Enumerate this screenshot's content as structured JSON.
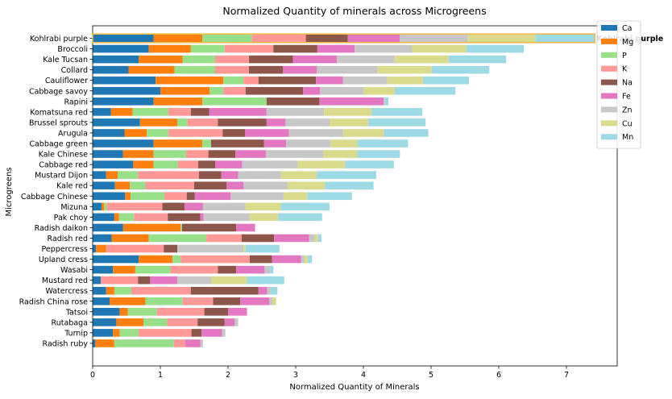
{
  "chart_data": {
    "type": "bar",
    "orientation": "horizontal",
    "stacked": true,
    "title": "Normalized Quantity of minerals across Microgreens",
    "xlabel": "Normalized Quantity of Minerals",
    "ylabel": "Microgreens",
    "xlim": [
      0,
      7.75
    ],
    "xticks": [
      0,
      1,
      2,
      3,
      4,
      5,
      6,
      7
    ],
    "grid": false,
    "legend_position": "top-right",
    "highlight": {
      "category": "Kohlrabi purple",
      "label": "Kohlrabi purple",
      "color": "#f0b84a"
    },
    "categories": [
      "Kohlrabi purple",
      "Broccoli",
      "Kale Tucsan",
      "Collard",
      "Cauliflower",
      "Cabbage savoy",
      "Rapini",
      "Komatsuna red",
      "Brussel sprouts",
      "Arugula",
      "Cabbage green",
      "Kale Chinese",
      "Cabbage red",
      "Mustard Dijon",
      "Kale red",
      "Cabbage Chinese",
      "Mizuna",
      "Pak choy",
      "Radish daikon",
      "Radish red",
      "Peppercress",
      "Upland cress",
      "Wasabi",
      "Mustard red",
      "Watercress",
      "Radish China rose",
      "Tatsoi",
      "Rutabaga",
      "Turnip",
      "Radish ruby"
    ],
    "series": [
      {
        "name": "Ca",
        "color": "#1f77b4",
        "values": [
          0.9,
          0.83,
          0.68,
          0.53,
          0.93,
          1.0,
          0.9,
          0.27,
          0.7,
          0.47,
          0.9,
          0.45,
          0.6,
          0.2,
          0.33,
          0.48,
          0.13,
          0.32,
          0.45,
          0.28,
          0.05,
          0.68,
          0.3,
          0.12,
          0.2,
          0.25,
          0.4,
          0.35,
          0.3,
          0.04
        ]
      },
      {
        "name": "Mg",
        "color": "#ff7f0e",
        "values": [
          0.72,
          0.62,
          0.65,
          0.68,
          1.0,
          0.73,
          0.72,
          0.32,
          0.55,
          0.33,
          0.72,
          0.45,
          0.3,
          0.17,
          0.22,
          0.08,
          0.04,
          0.07,
          0.85,
          0.55,
          0.15,
          0.5,
          0.33,
          0.0,
          0.12,
          0.53,
          0.12,
          0.4,
          0.1,
          0.28
        ]
      },
      {
        "name": "P",
        "color": "#98df8a",
        "values": [
          0.73,
          0.5,
          0.48,
          0.6,
          0.3,
          0.2,
          0.95,
          0.53,
          0.15,
          0.32,
          0.13,
          0.48,
          0.36,
          0.3,
          0.23,
          0.5,
          0.04,
          0.22,
          0.02,
          0.85,
          0.0,
          0.12,
          0.52,
          0.0,
          0.25,
          0.55,
          0.43,
          0.35,
          0.28,
          0.88
        ]
      },
      {
        "name": "K",
        "color": "#ff9896",
        "values": [
          0.8,
          0.72,
          0.5,
          0.5,
          0.22,
          0.33,
          0.0,
          0.33,
          0.45,
          0.8,
          0.0,
          0.33,
          0.3,
          0.9,
          0.72,
          0.33,
          0.82,
          0.5,
          0.0,
          0.52,
          0.85,
          1.02,
          0.7,
          0.55,
          0.88,
          0.45,
          0.7,
          0.45,
          0.78,
          0.17
        ]
      },
      {
        "name": "Na",
        "color": "#8c564b",
        "values": [
          0.62,
          0.65,
          0.65,
          0.5,
          0.85,
          0.85,
          0.78,
          0.27,
          0.72,
          0.33,
          0.78,
          0.4,
          0.25,
          0.33,
          0.48,
          0.12,
          0.33,
          0.48,
          0.8,
          0.48,
          0.2,
          0.33,
          0.27,
          0.18,
          1.0,
          0.4,
          0.35,
          0.4,
          0.15,
          0.0
        ]
      },
      {
        "name": "Fe",
        "color": "#e377c2",
        "values": [
          0.77,
          0.55,
          0.65,
          0.5,
          0.4,
          0.25,
          0.95,
          0.85,
          0.28,
          0.65,
          0.33,
          0.45,
          0.4,
          0.25,
          0.25,
          0.53,
          0.27,
          0.05,
          0.28,
          0.52,
          0.0,
          0.43,
          0.42,
          0.4,
          0.13,
          0.43,
          0.28,
          0.15,
          0.3,
          0.22
        ]
      },
      {
        "name": "Zn",
        "color": "#c7c7c7",
        "values": [
          1.0,
          0.85,
          0.85,
          0.9,
          0.65,
          0.65,
          0.02,
          0.85,
          0.65,
          0.8,
          0.65,
          0.85,
          0.82,
          0.63,
          0.65,
          0.78,
          0.63,
          0.68,
          0.0,
          0.08,
          0.98,
          0.05,
          0.08,
          0.5,
          0.05,
          0.05,
          0.0,
          0.05,
          0.05,
          0.04
        ]
      },
      {
        "name": "Cu",
        "color": "#dbdb8d",
        "values": [
          1.0,
          0.8,
          0.8,
          0.8,
          0.53,
          0.45,
          0.0,
          0.7,
          0.57,
          0.6,
          0.4,
          0.5,
          0.7,
          0.53,
          0.55,
          0.35,
          0.52,
          0.42,
          0.0,
          0.05,
          0.03,
          0.05,
          0.0,
          0.53,
          0.0,
          0.05,
          0.0,
          0.0,
          0.0,
          0.0
        ]
      },
      {
        "name": "Mn",
        "color": "#9edae5",
        "values": [
          0.88,
          0.85,
          0.85,
          0.85,
          0.68,
          0.9,
          0.05,
          0.75,
          0.85,
          0.66,
          0.75,
          0.63,
          0.72,
          0.88,
          0.72,
          0.66,
          0.72,
          0.65,
          0.0,
          0.05,
          0.5,
          0.06,
          0.05,
          0.55,
          0.1,
          0.0,
          0.0,
          0.0,
          0.0,
          0.0
        ]
      }
    ]
  }
}
